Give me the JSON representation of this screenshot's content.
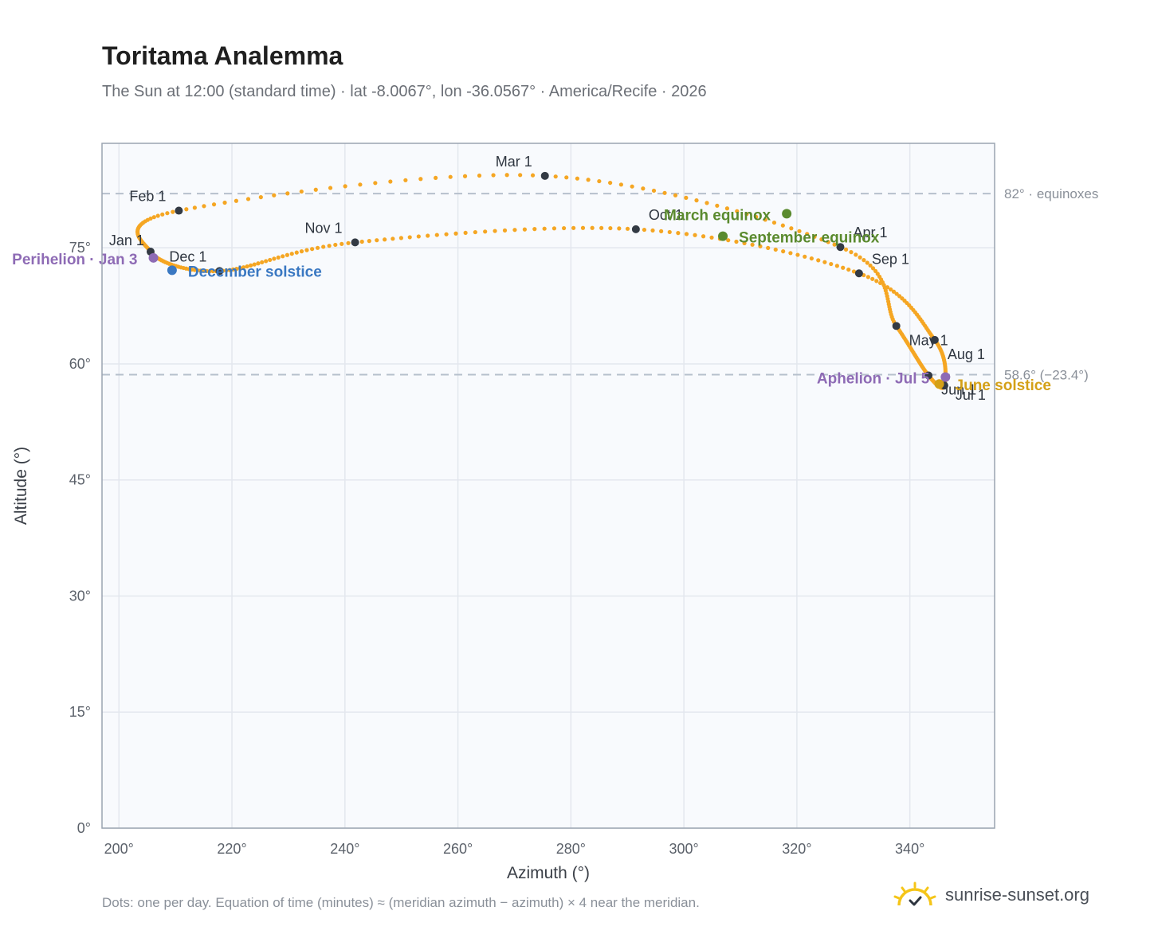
{
  "title": "Toritama Analemma",
  "subtitle": "The Sun at 12:00 (standard time) · lat -8.0067°, lon -36.0567° · America/Recife · 2026",
  "footnote": "Dots: one per day. Equation of time (minutes) ≈ (meridian azimuth − azimuth) × 4 near the meridian.",
  "brand": "sunrise-sunset.org",
  "colors": {
    "curve": "#f5a623",
    "month_marker": "#333a44",
    "equinox": "#5a8a2e",
    "december_solstice": "#3a78c2",
    "june_solstice": "#d4a017",
    "apsis": "#8e6bb5",
    "reference_line": "#b6c0cc",
    "plot_bg": "#f8fafd",
    "grid": "#e3e7ee"
  },
  "chart_data": {
    "type": "scatter",
    "xlabel": "Azimuth (°)",
    "ylabel": "Altitude (°)",
    "xlim": [
      197,
      355
    ],
    "ylim": [
      0,
      88.5
    ],
    "x_ticks": [
      200,
      220,
      240,
      260,
      280,
      300,
      320,
      340
    ],
    "y_ticks": [
      0,
      15,
      30,
      45,
      60,
      75
    ],
    "x_tick_labels": [
      "200°",
      "220°",
      "240°",
      "260°",
      "280°",
      "300°",
      "320°",
      "340°"
    ],
    "y_tick_labels": [
      "0°",
      "15°",
      "30°",
      "45°",
      "60°",
      "75°"
    ],
    "grid": true,
    "reference_lines": [
      {
        "altitude": 82.0,
        "label": "82° · equinoxes"
      },
      {
        "altitude": 58.6,
        "label": "58.6° (−23.4°)"
      }
    ],
    "curve_anchors": [
      {
        "date": "Jan 1",
        "az": 205.6,
        "alt": 74.5
      },
      {
        "date": "Feb 1",
        "az": 210.6,
        "alt": 79.8
      },
      {
        "date": "Mar 1",
        "az": 275.4,
        "alt": 84.3
      },
      {
        "date": "Apr 1",
        "az": 327.7,
        "alt": 75.1
      },
      {
        "date": "May 1",
        "az": 337.6,
        "alt": 64.9
      },
      {
        "date": "Jun 1",
        "az": 343.3,
        "alt": 58.5
      },
      {
        "date": "Jul 1",
        "az": 346.1,
        "alt": 57.2
      },
      {
        "date": "Aug 1",
        "az": 344.4,
        "alt": 63.1
      },
      {
        "date": "Sep 1",
        "az": 331.0,
        "alt": 71.7
      },
      {
        "date": "Oct 1",
        "az": 291.5,
        "alt": 77.4
      },
      {
        "date": "Nov 1",
        "az": 241.8,
        "alt": 75.7
      },
      {
        "date": "Dec 1",
        "az": 217.8,
        "alt": 72.0
      }
    ],
    "month_markers": [
      {
        "label": "Jan 1",
        "az": 205.6,
        "alt": 74.5,
        "label_dx": -8,
        "label_dy": -8,
        "anchor": "end"
      },
      {
        "label": "Feb 1",
        "az": 210.6,
        "alt": 79.8,
        "label_dx": -16,
        "label_dy": -12,
        "anchor": "end"
      },
      {
        "label": "Mar 1",
        "az": 275.4,
        "alt": 84.3,
        "label_dx": -16,
        "label_dy": -12,
        "anchor": "end"
      },
      {
        "label": "Apr 1",
        "az": 327.7,
        "alt": 75.1,
        "label_dx": 16,
        "label_dy": -12,
        "anchor": "start"
      },
      {
        "label": "May 1",
        "az": 337.6,
        "alt": 64.9,
        "label_dx": 16,
        "label_dy": 24,
        "anchor": "start"
      },
      {
        "label": "Jun 1",
        "az": 343.3,
        "alt": 58.5,
        "label_dx": 16,
        "label_dy": 24,
        "anchor": "start"
      },
      {
        "label": "Jul 1",
        "az": 346.1,
        "alt": 57.2,
        "label_dx": 14,
        "label_dy": 18,
        "anchor": "start"
      },
      {
        "label": "Aug 1",
        "az": 344.4,
        "alt": 63.1,
        "label_dx": 16,
        "label_dy": 24,
        "anchor": "start"
      },
      {
        "label": "Sep 1",
        "az": 331.0,
        "alt": 71.7,
        "label_dx": 16,
        "label_dy": -12,
        "anchor": "start"
      },
      {
        "label": "Oct 1",
        "az": 291.5,
        "alt": 77.4,
        "label_dx": 16,
        "label_dy": -12,
        "anchor": "start"
      },
      {
        "label": "Nov 1",
        "az": 241.8,
        "alt": 75.7,
        "label_dx": -16,
        "label_dy": -12,
        "anchor": "end"
      },
      {
        "label": "Dec 1",
        "az": 217.8,
        "alt": 72.0,
        "label_dx": -16,
        "label_dy": -12,
        "anchor": "end"
      }
    ],
    "events": [
      {
        "label": "March equinox",
        "az": 318.2,
        "alt": 79.4,
        "color_key": "equinox",
        "label_dx": -20,
        "label_dy": 8,
        "anchor": "end"
      },
      {
        "label": "September equinox",
        "az": 306.9,
        "alt": 76.5,
        "color_key": "equinox",
        "label_dx": 20,
        "label_dy": 8,
        "anchor": "start"
      },
      {
        "label": "December solstice",
        "az": 209.4,
        "alt": 72.1,
        "color_key": "december_solstice",
        "label_dx": 20,
        "label_dy": 8,
        "anchor": "start"
      },
      {
        "label": "June solstice",
        "az": 345.2,
        "alt": 57.4,
        "color_key": "june_solstice",
        "label_dx": 20,
        "label_dy": 8,
        "anchor": "start"
      },
      {
        "label": "Perihelion · Jan 3",
        "az": 206.1,
        "alt": 73.7,
        "color_key": "apsis",
        "label_dx": -20,
        "label_dy": 8,
        "anchor": "end"
      },
      {
        "label": "Aphelion · Jul 5",
        "az": 346.3,
        "alt": 58.3,
        "color_key": "apsis",
        "label_dx": -20,
        "label_dy": 8,
        "anchor": "end"
      }
    ]
  }
}
